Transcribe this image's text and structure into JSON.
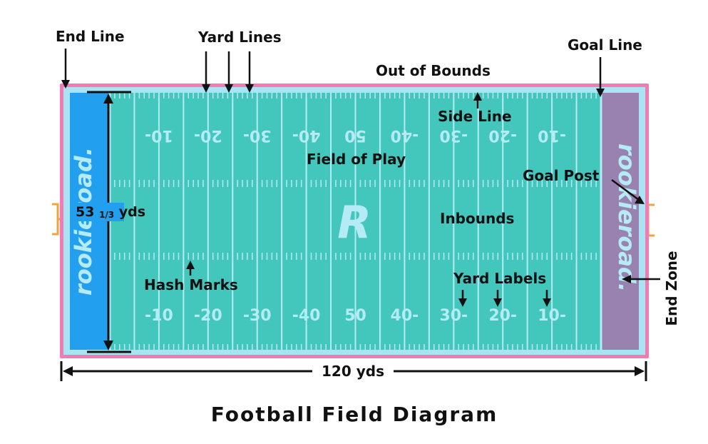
{
  "colors": {
    "out_of_bounds": "#f47ab4",
    "border": "#a8e4f4",
    "field": "#43c6bc",
    "left_end_zone": "#22a0ef",
    "right_end_zone": "#9a82b0",
    "markings": "#b5ebf5",
    "goal_post": "#f3a33b",
    "text": "#111111"
  },
  "labels": {
    "end_line": "End Line",
    "yard_lines": "Yard Lines",
    "goal_line": "Goal Line",
    "out_of_bounds": "Out of Bounds",
    "side_line": "Side Line",
    "field_of_play": "Field of Play",
    "goal_post": "Goal Post",
    "inbounds": "Inbounds",
    "hash_marks": "Hash Marks",
    "yard_labels": "Yard Labels",
    "end_zone": "End Zone",
    "width_main": "53",
    "width_fraction": "1/3",
    "width_unit": "yds",
    "length": "120 yds",
    "title": "Football Field Diagram"
  },
  "brand": {
    "left": "rookieroad.",
    "right": "rookieroad.",
    "logo_letter": "R"
  },
  "yard_numbers": {
    "bottom": [
      "-10",
      "-20",
      "-30",
      "-40",
      "50",
      "40-",
      "30-",
      "20-",
      "10-"
    ],
    "top": [
      "10-",
      "20-",
      "30-",
      "40-",
      "50",
      "-40",
      "-30",
      "-20",
      "-10"
    ]
  }
}
